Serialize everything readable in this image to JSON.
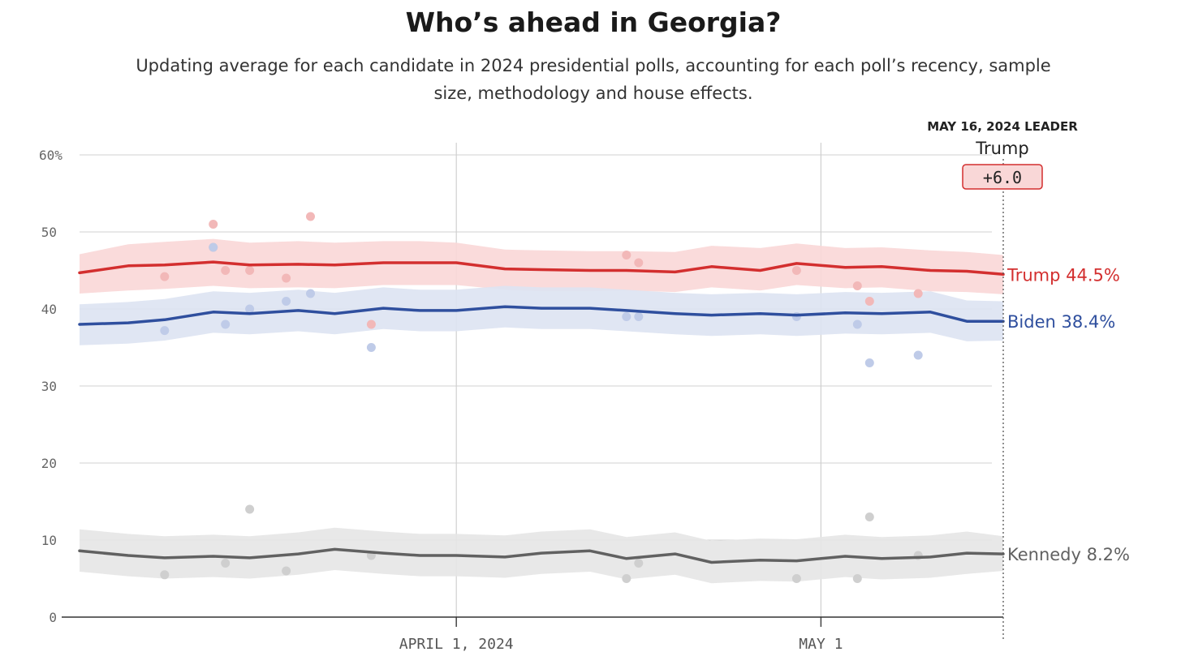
{
  "header": {
    "title": "Who’s ahead in Georgia?",
    "subtitle": "Updating average for each candidate in 2024 presidential polls, accounting for each poll’s recency, sample size, methodology and house effects."
  },
  "leader": {
    "heading": "MAY 16, 2024 LEADER",
    "name": "Trump",
    "margin": "+6.0"
  },
  "colors": {
    "trump": "#d32f2f",
    "trump_band": "#f9d7d7",
    "trump_dot": "#f2b8b8",
    "biden": "#2f4f9e",
    "biden_band": "#dde3f2",
    "biden_dot": "#bfcbe8",
    "kennedy": "#616161",
    "kennedy_band": "#e6e6e6",
    "kennedy_dot": "#cfcfcf",
    "grid": "#d0d0d0"
  },
  "chart_data": {
    "type": "line",
    "title": "Who’s ahead in Georgia?",
    "ylim": [
      0,
      60
    ],
    "y_ticks": [
      0,
      10,
      20,
      30,
      40,
      50,
      60
    ],
    "y_tick_labels": [
      "0",
      "10",
      "20",
      "30",
      "40",
      "50",
      "60%"
    ],
    "x_start": "2024-03-01",
    "x_end": "2024-05-16",
    "x_ticks": [
      {
        "date": "2024-04-01",
        "label": "APRIL 1, 2024"
      },
      {
        "date": "2024-05-01",
        "label": "MAY 1"
      }
    ],
    "grid": true,
    "series": [
      {
        "name": "Trump",
        "key": "trump",
        "end_label": "Trump 44.5%",
        "dates": [
          "2024-03-01",
          "2024-03-05",
          "2024-03-08",
          "2024-03-12",
          "2024-03-15",
          "2024-03-19",
          "2024-03-22",
          "2024-03-26",
          "2024-03-29",
          "2024-04-01",
          "2024-04-05",
          "2024-04-08",
          "2024-04-12",
          "2024-04-15",
          "2024-04-19",
          "2024-04-22",
          "2024-04-26",
          "2024-04-29",
          "2024-05-03",
          "2024-05-06",
          "2024-05-10",
          "2024-05-13",
          "2024-05-16"
        ],
        "values": [
          44.7,
          45.6,
          45.7,
          46.1,
          45.7,
          45.8,
          45.7,
          46.0,
          46.0,
          46.0,
          45.2,
          45.1,
          45.0,
          45.0,
          44.8,
          45.5,
          45.0,
          45.9,
          45.4,
          45.5,
          45.0,
          44.9,
          44.5
        ],
        "band_lower": [
          42.0,
          42.4,
          42.6,
          43.0,
          42.7,
          42.8,
          42.7,
          43.1,
          43.1,
          43.1,
          42.5,
          42.3,
          42.3,
          42.4,
          42.2,
          42.8,
          42.4,
          43.1,
          42.7,
          42.8,
          42.3,
          42.2,
          41.9
        ],
        "band_upper": [
          47.1,
          48.4,
          48.7,
          49.1,
          48.6,
          48.8,
          48.6,
          48.8,
          48.8,
          48.6,
          47.7,
          47.6,
          47.5,
          47.5,
          47.4,
          48.2,
          47.9,
          48.5,
          47.9,
          48.0,
          47.6,
          47.4,
          47.0
        ],
        "polls": [
          {
            "date": "2024-03-08",
            "value": 44.2
          },
          {
            "date": "2024-03-12",
            "value": 51.0
          },
          {
            "date": "2024-03-12",
            "value": 48.0
          },
          {
            "date": "2024-03-13",
            "value": 45.0
          },
          {
            "date": "2024-03-15",
            "value": 45.0
          },
          {
            "date": "2024-03-18",
            "value": 44.0
          },
          {
            "date": "2024-03-20",
            "value": 52.0
          },
          {
            "date": "2024-03-25",
            "value": 38.0
          },
          {
            "date": "2024-04-15",
            "value": 47.0
          },
          {
            "date": "2024-04-16",
            "value": 46.0
          },
          {
            "date": "2024-04-29",
            "value": 45.0
          },
          {
            "date": "2024-05-04",
            "value": 43.0
          },
          {
            "date": "2024-05-05",
            "value": 41.0
          },
          {
            "date": "2024-05-09",
            "value": 42.0
          }
        ]
      },
      {
        "name": "Biden",
        "key": "biden",
        "end_label": "Biden 38.4%",
        "dates": [
          "2024-03-01",
          "2024-03-05",
          "2024-03-08",
          "2024-03-12",
          "2024-03-15",
          "2024-03-19",
          "2024-03-22",
          "2024-03-26",
          "2024-03-29",
          "2024-04-01",
          "2024-04-05",
          "2024-04-08",
          "2024-04-12",
          "2024-04-15",
          "2024-04-19",
          "2024-04-22",
          "2024-04-26",
          "2024-04-29",
          "2024-05-03",
          "2024-05-06",
          "2024-05-10",
          "2024-05-13",
          "2024-05-16"
        ],
        "values": [
          38.0,
          38.2,
          38.6,
          39.6,
          39.4,
          39.8,
          39.4,
          40.1,
          39.8,
          39.8,
          40.3,
          40.1,
          40.1,
          39.8,
          39.4,
          39.2,
          39.4,
          39.2,
          39.5,
          39.4,
          39.6,
          38.4,
          38.4
        ],
        "band_lower": [
          35.3,
          35.5,
          35.9,
          36.9,
          36.7,
          37.1,
          36.7,
          37.4,
          37.1,
          37.1,
          37.6,
          37.4,
          37.4,
          37.1,
          36.7,
          36.5,
          36.7,
          36.5,
          36.8,
          36.7,
          36.9,
          35.8,
          35.9
        ],
        "band_upper": [
          40.6,
          40.9,
          41.3,
          42.3,
          42.1,
          42.5,
          42.1,
          42.8,
          42.5,
          42.5,
          43.0,
          42.8,
          42.8,
          42.5,
          42.1,
          41.9,
          42.1,
          41.9,
          42.2,
          42.1,
          42.3,
          41.1,
          41.0
        ],
        "polls": [
          {
            "date": "2024-03-08",
            "value": 37.2
          },
          {
            "date": "2024-03-12",
            "value": 48.0
          },
          {
            "date": "2024-03-13",
            "value": 38.0
          },
          {
            "date": "2024-03-15",
            "value": 40.0
          },
          {
            "date": "2024-03-18",
            "value": 41.0
          },
          {
            "date": "2024-03-20",
            "value": 42.0
          },
          {
            "date": "2024-03-25",
            "value": 35.0
          },
          {
            "date": "2024-04-15",
            "value": 39.0
          },
          {
            "date": "2024-04-16",
            "value": 39.0
          },
          {
            "date": "2024-04-29",
            "value": 39.0
          },
          {
            "date": "2024-05-04",
            "value": 38.0
          },
          {
            "date": "2024-05-05",
            "value": 33.0
          },
          {
            "date": "2024-05-09",
            "value": 34.0
          }
        ]
      },
      {
        "name": "Kennedy",
        "key": "kennedy",
        "end_label": "Kennedy 8.2%",
        "dates": [
          "2024-03-01",
          "2024-03-05",
          "2024-03-08",
          "2024-03-12",
          "2024-03-15",
          "2024-03-19",
          "2024-03-22",
          "2024-03-26",
          "2024-03-29",
          "2024-04-01",
          "2024-04-05",
          "2024-04-08",
          "2024-04-12",
          "2024-04-15",
          "2024-04-19",
          "2024-04-22",
          "2024-04-26",
          "2024-04-29",
          "2024-05-03",
          "2024-05-06",
          "2024-05-10",
          "2024-05-13",
          "2024-05-16"
        ],
        "values": [
          8.6,
          8.0,
          7.7,
          7.9,
          7.7,
          8.2,
          8.8,
          8.3,
          8.0,
          8.0,
          7.8,
          8.3,
          8.6,
          7.6,
          8.2,
          7.1,
          7.4,
          7.3,
          7.9,
          7.6,
          7.8,
          8.3,
          8.2
        ],
        "band_lower": [
          5.9,
          5.3,
          5.0,
          5.2,
          5.0,
          5.5,
          6.1,
          5.6,
          5.3,
          5.3,
          5.1,
          5.6,
          5.9,
          4.9,
          5.5,
          4.4,
          4.7,
          4.6,
          5.2,
          4.9,
          5.1,
          5.6,
          6.0
        ],
        "band_upper": [
          11.4,
          10.8,
          10.5,
          10.7,
          10.5,
          11.0,
          11.6,
          11.1,
          10.8,
          10.8,
          10.6,
          11.1,
          11.4,
          10.4,
          11.0,
          9.9,
          10.2,
          10.1,
          10.7,
          10.4,
          10.6,
          11.1,
          10.5
        ],
        "polls": [
          {
            "date": "2024-03-08",
            "value": 5.5
          },
          {
            "date": "2024-03-13",
            "value": 7.0
          },
          {
            "date": "2024-03-15",
            "value": 14.0
          },
          {
            "date": "2024-03-18",
            "value": 6.0
          },
          {
            "date": "2024-03-25",
            "value": 8.0
          },
          {
            "date": "2024-04-15",
            "value": 5.0
          },
          {
            "date": "2024-04-16",
            "value": 7.0
          },
          {
            "date": "2024-04-29",
            "value": 5.0
          },
          {
            "date": "2024-05-04",
            "value": 5.0
          },
          {
            "date": "2024-05-05",
            "value": 13.0
          },
          {
            "date": "2024-05-09",
            "value": 8.0
          }
        ]
      }
    ]
  }
}
